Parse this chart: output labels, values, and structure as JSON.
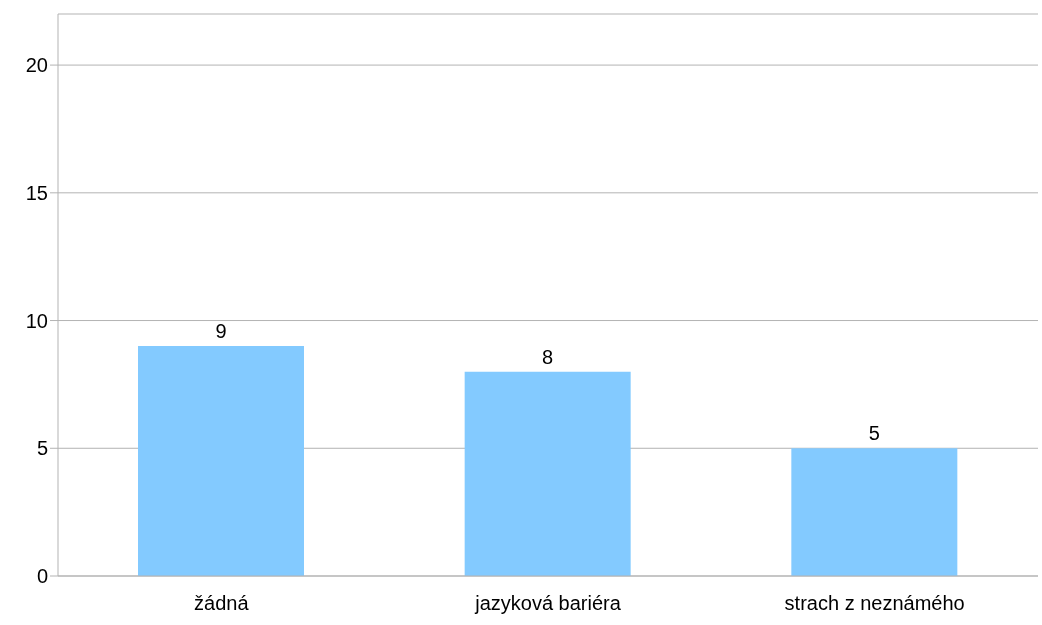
{
  "chart_data": {
    "type": "bar",
    "categories": [
      "žádná",
      "jazyková bariéra",
      "strach z neznámého"
    ],
    "values": [
      9,
      8,
      5
    ],
    "color": "#83caff",
    "ylim": [
      0,
      22
    ],
    "yticks": [
      0,
      5,
      10,
      15,
      20
    ],
    "grid": "y",
    "data_labels": true
  }
}
